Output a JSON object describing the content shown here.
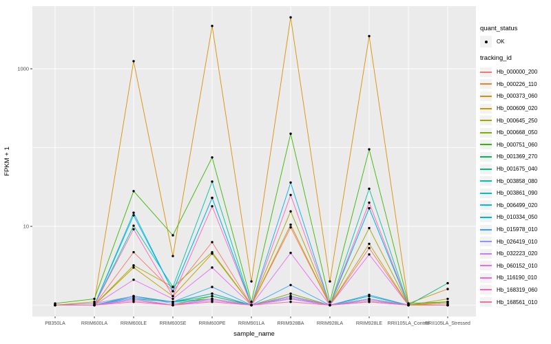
{
  "figure": {
    "panel_bg": "#EBEBEB",
    "grid_color": "#FFFFFF",
    "point_color": "#000000",
    "axis_text_color": "#4D4D4D",
    "axis_title_color": "#000000",
    "legend_key_bg": "#F2F2F2"
  },
  "axes": {
    "x_title": "sample_name",
    "y_title": "FPKM + 1"
  },
  "legend": {
    "quant_title": "quant_status",
    "quant_ok_label": "OK",
    "tracking_title": "tracking_id"
  },
  "chart_data": {
    "type": "line",
    "title": "",
    "xlabel": "sample_name",
    "ylabel": "FPKM + 1",
    "y_scale": "log10",
    "grid": true,
    "legend_position": "right",
    "quant_status": {
      "title": "quant_status",
      "items": [
        "OK"
      ]
    },
    "y_ticks": [
      {
        "label": "10",
        "value": 10
      },
      {
        "label": "1000",
        "value": 1000
      }
    ],
    "y_gridlines_major": [
      10,
      1000
    ],
    "y_gridlines_minor": [
      1,
      100
    ],
    "ylim": [
      0.9,
      6000
    ],
    "categories": [
      "PB350LA",
      "RRIM600LA",
      "RRIM600LE",
      "RRIM600SE",
      "RRIM600PE",
      "RRIM901LA",
      "RRIM928BA",
      "RRIM928LA",
      "RRIM928LE",
      "RRII105LA_Control",
      "RRII105LA_Stressed"
    ],
    "series": [
      {
        "name": "Hb_000000_200",
        "color": "#F8766D",
        "values": [
          1,
          1,
          4.7,
          1.5,
          6.3,
          1,
          9.7,
          1,
          5.3,
          1,
          1.05
        ]
      },
      {
        "name": "Hb_000226_110",
        "color": "#EA8331",
        "values": [
          1,
          1,
          1.3,
          1.1,
          1.4,
          1,
          1.3,
          1,
          1.2,
          1,
          1.1
        ]
      },
      {
        "name": "Hb_000373_060",
        "color": "#D89000",
        "values": [
          1,
          1.1,
          1250,
          4.2,
          3500,
          2,
          4500,
          2,
          2600,
          1.05,
          1.6
        ]
      },
      {
        "name": "Hb_000609_020",
        "color": "#C09B00",
        "values": [
          1,
          1,
          3,
          1.3,
          4.5,
          1,
          10.5,
          1,
          6,
          1,
          1.2
        ]
      },
      {
        "name": "Hb_000645_250",
        "color": "#A3A500",
        "values": [
          1,
          1,
          3.2,
          1.7,
          4.7,
          1,
          15.5,
          1,
          9.5,
          1,
          1.1
        ]
      },
      {
        "name": "Hb_000668_050",
        "color": "#7CAE00",
        "values": [
          1,
          1,
          1.2,
          1,
          1.3,
          1,
          1.4,
          1,
          1.3,
          1,
          1
        ]
      },
      {
        "name": "Hb_000751_060",
        "color": "#39B600",
        "values": [
          1.05,
          1.2,
          28,
          7.7,
          75,
          1.1,
          150,
          1.1,
          95,
          1.05,
          1.1
        ]
      },
      {
        "name": "Hb_001369_270",
        "color": "#00BB4E",
        "values": [
          1,
          1,
          1.3,
          1.1,
          1.2,
          1,
          1.3,
          1,
          1.2,
          1,
          1
        ]
      },
      {
        "name": "Hb_001675_040",
        "color": "#00BF7D",
        "values": [
          1,
          1,
          1.2,
          1.1,
          1.3,
          1,
          1.2,
          1,
          1.1,
          1,
          1.9
        ]
      },
      {
        "name": "Hb_003858_080",
        "color": "#00C1A3",
        "values": [
          1,
          1,
          10.2,
          1.7,
          37,
          1,
          1.3,
          1,
          30,
          1,
          1
        ]
      },
      {
        "name": "Hb_003861_090",
        "color": "#00BFC4",
        "values": [
          1,
          1,
          14.9,
          1.5,
          23,
          1,
          1.2,
          1,
          17,
          1,
          1
        ]
      },
      {
        "name": "Hb_006499_020",
        "color": "#00BAE0",
        "values": [
          1,
          1,
          1.3,
          1.1,
          1.4,
          1,
          1.2,
          1,
          1.3,
          1,
          1
        ]
      },
      {
        "name": "Hb_010334_050",
        "color": "#00B0F6",
        "values": [
          1,
          1,
          13.8,
          1.5,
          23,
          1,
          36,
          1,
          17,
          1,
          1
        ]
      },
      {
        "name": "Hb_015978_010",
        "color": "#35A2FF",
        "values": [
          1,
          1,
          1.25,
          1.1,
          1.7,
          1,
          1.8,
          1,
          1.35,
          1,
          1
        ]
      },
      {
        "name": "Hb_026419_010",
        "color": "#9590FF",
        "values": [
          1,
          1.05,
          1.3,
          1.05,
          1.2,
          1,
          1.3,
          1,
          1.2,
          1,
          1
        ]
      },
      {
        "name": "Hb_032223_020",
        "color": "#C77CFF",
        "values": [
          1,
          1,
          1.2,
          1,
          1.15,
          1,
          1.2,
          1,
          1.15,
          1,
          1
        ]
      },
      {
        "name": "Hb_060152_010",
        "color": "#E76BF3",
        "values": [
          1,
          1,
          2.1,
          1.2,
          3,
          1,
          4.6,
          1,
          4.4,
          1,
          1
        ]
      },
      {
        "name": "Hb_116190_010",
        "color": "#FA62DB",
        "values": [
          1,
          1,
          1.15,
          1,
          1.2,
          1,
          1.25,
          1,
          1.15,
          1,
          1
        ]
      },
      {
        "name": "Hb_168319_060",
        "color": "#FF62BC",
        "values": [
          1,
          1,
          9.2,
          1.3,
          18,
          1,
          25,
          1,
          20,
          1,
          1
        ]
      },
      {
        "name": "Hb_168561_010",
        "color": "#FF6A98",
        "values": [
          1,
          1,
          1.1,
          1,
          1.1,
          1,
          1.1,
          1,
          1.1,
          1,
          1
        ]
      }
    ]
  }
}
